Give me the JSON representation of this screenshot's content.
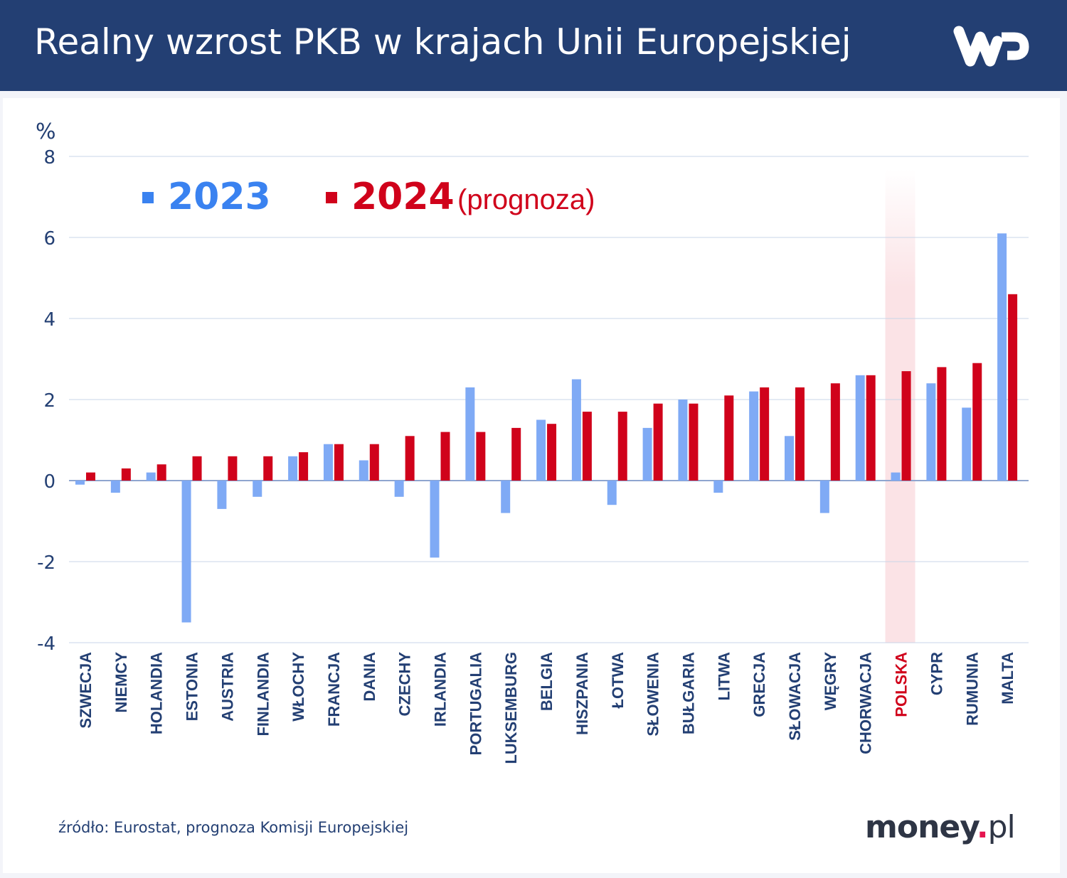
{
  "header": {
    "title": "Realny wzrost PKB w krajach Unii Europejskiej",
    "logo": "WP"
  },
  "footer": {
    "source": "źródło: Eurostat, prognoza Komisji Europejskiej",
    "brand_main": "money",
    "brand_dot": ".",
    "brand_tld": "pl"
  },
  "chart_data": {
    "type": "bar",
    "title": "Realny wzrost PKB w krajach Unii Europejskiej",
    "ylabel": "%",
    "ylim": [
      -4,
      8
    ],
    "yticks": [
      -4,
      -2,
      0,
      2,
      4,
      6,
      8
    ],
    "grid": true,
    "legend_placement": "top-left",
    "highlight_category": "POLSKA",
    "categories": [
      "SZWECJA",
      "NIEMCY",
      "HOLANDIA",
      "ESTONIA",
      "AUSTRIA",
      "FINLANDIA",
      "WŁOCHY",
      "FRANCJA",
      "DANIA",
      "CZECHY",
      "IRLANDIA",
      "PORTUGALIA",
      "LUKSEMBURG",
      "BELGIA",
      "HISZPANIA",
      "ŁOTWA",
      "SŁOWENIA",
      "BUŁGARIA",
      "LITWA",
      "GRECJA",
      "SŁOWACJA",
      "WĘGRY",
      "CHORWACJA",
      "POLSKA",
      "CYPR",
      "RUMUNIA",
      "MALTA"
    ],
    "series": [
      {
        "name": "2023",
        "suffix": "",
        "color": "#7faaf5",
        "legend_color": "#3a82f0",
        "values": [
          -0.1,
          -0.3,
          0.2,
          -3.5,
          -0.7,
          -0.4,
          0.6,
          0.9,
          0.5,
          -0.4,
          -1.9,
          2.3,
          -0.8,
          1.5,
          2.5,
          -0.6,
          1.3,
          2.0,
          -0.3,
          2.2,
          1.1,
          -0.8,
          2.6,
          0.2,
          2.4,
          1.8,
          6.1
        ]
      },
      {
        "name": "2024",
        "suffix": "(prognoza)",
        "color": "#d0021b",
        "legend_color": "#d0021b",
        "values": [
          0.2,
          0.3,
          0.4,
          0.6,
          0.6,
          0.6,
          0.7,
          0.9,
          0.9,
          1.1,
          1.2,
          1.2,
          1.3,
          1.4,
          1.7,
          1.7,
          1.9,
          1.9,
          2.1,
          2.3,
          2.3,
          2.4,
          2.6,
          2.7,
          2.8,
          2.9,
          4.6
        ]
      }
    ]
  }
}
